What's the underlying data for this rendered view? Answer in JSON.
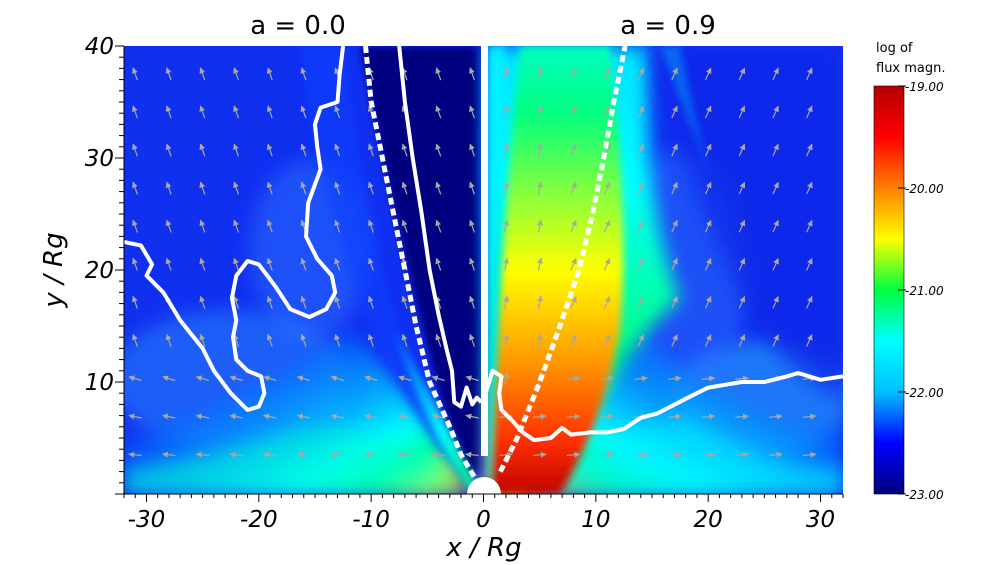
{
  "chart_data": {
    "type": "heatmap",
    "panels": [
      {
        "title": "a = 0.0",
        "x_range": [
          -32,
          0
        ]
      },
      {
        "title": "a = 0.9",
        "x_range": [
          0,
          32
        ]
      }
    ],
    "xlabel": "x / Rg",
    "ylabel": "y / Rg",
    "xlim": [
      -32,
      32
    ],
    "ylim": [
      0,
      40
    ],
    "x_ticks": [
      -30,
      -20,
      -10,
      0,
      10,
      20,
      30
    ],
    "y_ticks": [
      10,
      20,
      30,
      40
    ],
    "colorbar": {
      "title_lines": [
        "log of",
        "flux magn."
      ],
      "min": -23.0,
      "max": -19.0,
      "ticks": [
        -19.0,
        -20.0,
        -21.0,
        -22.0,
        -23.0
      ],
      "tick_labels": [
        "-19.00",
        "-20.00",
        "-21.00",
        "-22.00",
        "-23.00"
      ],
      "colormap": [
        "#00007f",
        "#0000ff",
        "#00bfff",
        "#00ffff",
        "#00ff3f",
        "#ffff00",
        "#ff7f00",
        "#ff0000",
        "#b40000"
      ]
    },
    "contours": {
      "solid_left": [
        [
          -32,
          22.5
        ],
        [
          -30.5,
          22.2
        ],
        [
          -29.5,
          20.5
        ],
        [
          -30,
          19.5
        ],
        [
          -28.5,
          18
        ],
        [
          -27,
          15.5
        ],
        [
          -25,
          13
        ],
        [
          -24,
          11
        ],
        [
          -22.5,
          9
        ],
        [
          -21,
          7.5
        ],
        [
          -20,
          7.8
        ],
        [
          -19.5,
          9
        ],
        [
          -19.8,
          10.5
        ],
        [
          -21,
          11
        ],
        [
          -22,
          12
        ],
        [
          -22.3,
          14
        ],
        [
          -22,
          15.5
        ],
        [
          -22.4,
          17.5
        ],
        [
          -22,
          19.5
        ],
        [
          -21,
          20.8
        ],
        [
          -20,
          20.5
        ],
        [
          -18.5,
          18.5
        ],
        [
          -17.2,
          16.5
        ],
        [
          -15.5,
          15.8
        ],
        [
          -14,
          16.5
        ],
        [
          -13.2,
          18
        ],
        [
          -13.5,
          19.5
        ],
        [
          -14.8,
          21
        ],
        [
          -15.8,
          23
        ],
        [
          -15.6,
          26
        ],
        [
          -14.5,
          29
        ],
        [
          -14.8,
          31
        ],
        [
          -15,
          33
        ],
        [
          -14.5,
          34.5
        ],
        [
          -13,
          35
        ],
        [
          -12.8,
          37.5
        ],
        [
          -12.5,
          40
        ]
      ],
      "solid_left_inner": [
        [
          -7.5,
          40
        ],
        [
          -7,
          35
        ],
        [
          -6.3,
          30
        ],
        [
          -5.5,
          25
        ],
        [
          -4.8,
          20
        ],
        [
          -4,
          16
        ],
        [
          -3.3,
          13
        ],
        [
          -2.8,
          11
        ],
        [
          -2.6,
          8.2
        ],
        [
          -2,
          7.8
        ],
        [
          -1.5,
          9.5
        ],
        [
          -1,
          8
        ],
        [
          -0.6,
          8.6
        ],
        [
          -0.2,
          8.2
        ]
      ],
      "solid_right": [
        [
          0.2,
          9
        ],
        [
          0.8,
          11
        ],
        [
          1.6,
          10.5
        ],
        [
          1.4,
          9
        ],
        [
          1.6,
          7.5
        ],
        [
          2.6,
          6.5
        ],
        [
          3.5,
          5.5
        ],
        [
          4.5,
          4.8
        ],
        [
          6,
          5
        ],
        [
          7,
          5.9
        ],
        [
          7.8,
          5.3
        ],
        [
          9.5,
          5.5
        ],
        [
          11,
          5.5
        ],
        [
          12.5,
          5.8
        ],
        [
          14,
          6.8
        ],
        [
          15.5,
          7.2
        ],
        [
          18,
          8.5
        ],
        [
          20,
          9.5
        ],
        [
          23,
          10
        ],
        [
          25,
          10
        ],
        [
          27,
          10.5
        ],
        [
          28,
          10.8
        ],
        [
          30,
          10.2
        ],
        [
          32,
          10.5
        ]
      ],
      "dashed_left": [
        [
          -10.5,
          40
        ],
        [
          -10,
          35
        ],
        [
          -9,
          30
        ],
        [
          -8,
          25
        ],
        [
          -7,
          20
        ],
        [
          -6,
          15
        ],
        [
          -4.8,
          10
        ],
        [
          -3,
          6
        ],
        [
          -2,
          3.5
        ],
        [
          -0.8,
          1.5
        ]
      ],
      "dashed_right": [
        [
          1.5,
          2
        ],
        [
          3,
          5
        ],
        [
          5,
          10
        ],
        [
          6.8,
          15
        ],
        [
          8.5,
          20
        ],
        [
          9.7,
          25
        ],
        [
          10.7,
          30
        ],
        [
          11.6,
          35
        ],
        [
          12.6,
          40
        ]
      ]
    }
  }
}
